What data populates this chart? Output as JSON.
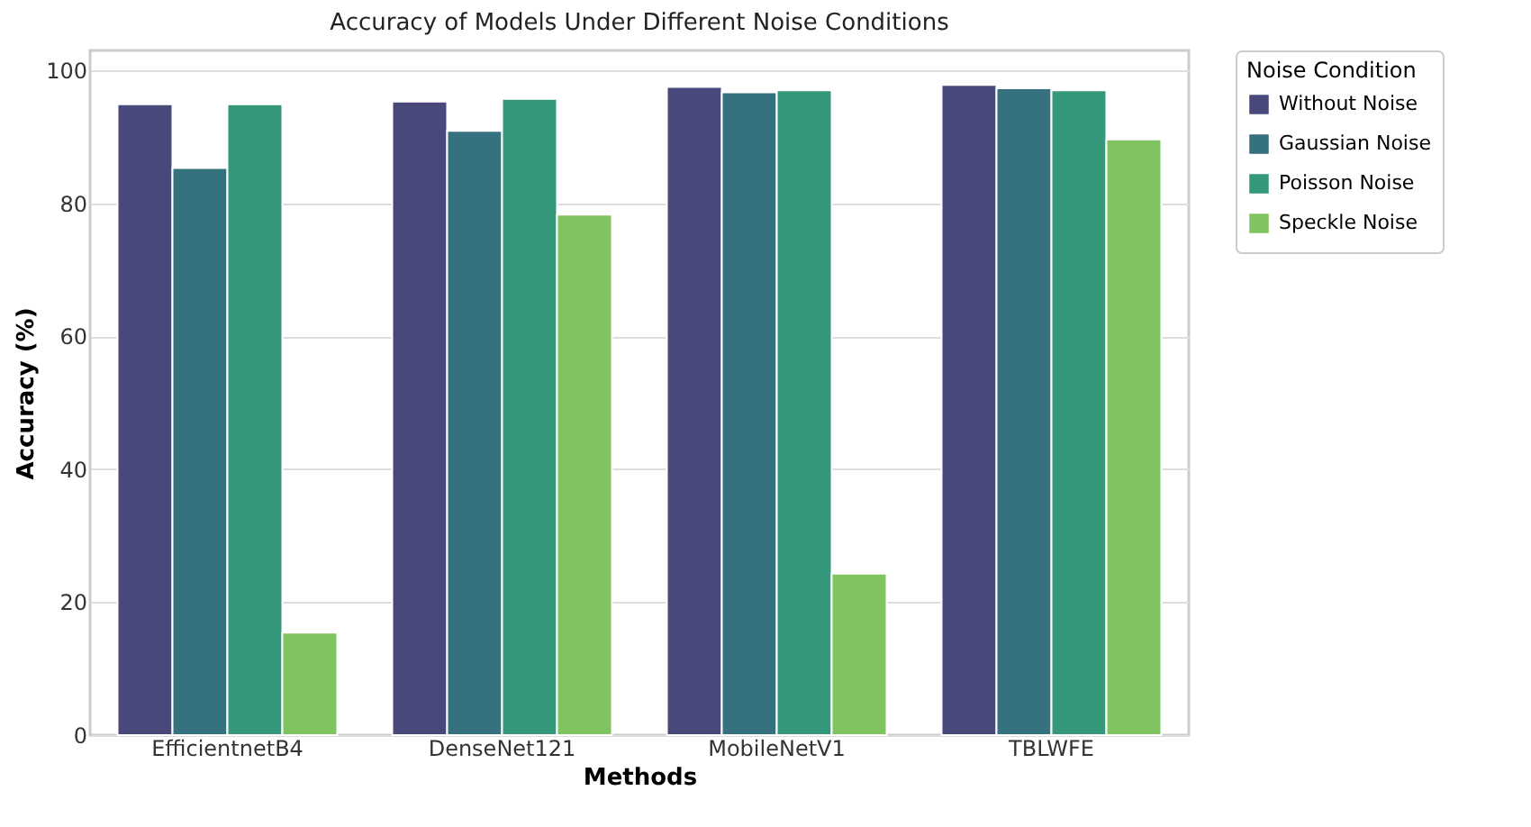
{
  "chart_data": {
    "type": "bar",
    "title": "Accuracy of Models Under Different Noise Conditions",
    "xlabel": "Methods",
    "ylabel": "Accuracy (%)",
    "legend_title": "Noise Condition",
    "categories": [
      "EfficientnetB4",
      "DenseNet121",
      "MobileNetV1",
      "TBLWFE"
    ],
    "series": [
      {
        "name": "Without Noise",
        "color": "#48487a",
        "values": [
          94.9,
          95.3,
          97.5,
          97.8
        ]
      },
      {
        "name": "Gaussian Noise",
        "color": "#36717f",
        "values": [
          85.3,
          90.9,
          96.7,
          97.3
        ]
      },
      {
        "name": "Poisson Noise",
        "color": "#35987b",
        "values": [
          94.9,
          95.7,
          97.0,
          97.0
        ]
      },
      {
        "name": "Speckle Noise",
        "color": "#80c361",
        "values": [
          15.4,
          78.3,
          24.3,
          89.6
        ]
      }
    ],
    "ylim": [
      0,
      103
    ],
    "yticks": [
      0,
      20,
      40,
      60,
      80,
      100
    ],
    "grid": "y",
    "legend": "top right"
  }
}
